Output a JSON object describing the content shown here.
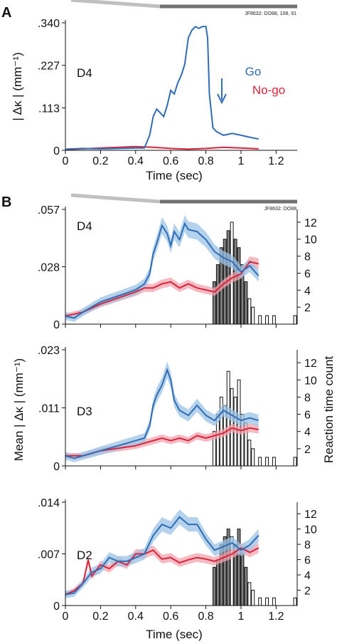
{
  "panels": {
    "A": {
      "letter": "A",
      "note": "JF8632: DO88, 108, 91"
    },
    "B": {
      "letter": "B",
      "note": "JF8632: DO88"
    }
  },
  "legend": {
    "go": "Go",
    "nogo": "No-go"
  },
  "colors": {
    "go": "#2f6db5",
    "nogo": "#d9243c",
    "go_band": "#9cc3e6",
    "nogo_band": "#f2a3ae",
    "hist_gray": "#808080",
    "stim_light": "#c0c0c0",
    "stim_dark": "#707070"
  },
  "axes": {
    "x_label": "Time (sec)",
    "x_ticks": [
      "0",
      "0.2",
      "0.4",
      "0.6",
      "0.8",
      "1",
      "1.2"
    ],
    "a_ylabel": "| Δκ |  (mm⁻¹)",
    "b_ylabel": "Mean | Δκ |  (mm⁻¹)",
    "b_right_label": "Reaction time count",
    "right_ticks": [
      "2",
      "4",
      "6",
      "8",
      "10",
      "12"
    ]
  },
  "chart_data": [
    {
      "panel": "A",
      "type": "line",
      "label": "D4",
      "x_range": [
        0,
        1.32
      ],
      "y_range": [
        0,
        0.34
      ],
      "y_ticks": [
        ".340",
        ".227",
        ".113",
        "0"
      ],
      "go": {
        "x": [
          0,
          0.1,
          0.2,
          0.3,
          0.4,
          0.45,
          0.48,
          0.5,
          0.52,
          0.54,
          0.56,
          0.58,
          0.6,
          0.62,
          0.64,
          0.66,
          0.68,
          0.7,
          0.72,
          0.74,
          0.76,
          0.78,
          0.8,
          0.81,
          0.82,
          0.84,
          0.86,
          0.9,
          0.95,
          1.0,
          1.05,
          1.1
        ],
        "y": [
          0.003,
          0.005,
          0.004,
          0.005,
          0.006,
          0.006,
          0.04,
          0.09,
          0.11,
          0.1,
          0.09,
          0.12,
          0.16,
          0.15,
          0.18,
          0.2,
          0.23,
          0.3,
          0.32,
          0.33,
          0.325,
          0.33,
          0.33,
          0.3,
          0.15,
          0.06,
          0.05,
          0.04,
          0.045,
          0.04,
          0.035,
          0.03
        ]
      },
      "nogo": {
        "x": [
          0,
          0.2,
          0.4,
          0.5,
          0.6,
          0.7,
          0.8,
          0.9,
          1.0,
          1.1
        ],
        "y": [
          0.002,
          0.006,
          0.01,
          0.008,
          0.005,
          0.003,
          0.005,
          0.008,
          0.006,
          0.004
        ]
      }
    },
    {
      "panel": "B",
      "type": "line",
      "label": "D4",
      "x_range": [
        0,
        1.32
      ],
      "y_range": [
        0,
        0.057
      ],
      "y_ticks": [
        ".057",
        ".028",
        "0"
      ],
      "right_range": [
        0,
        13.5
      ],
      "go": {
        "x": [
          0,
          0.05,
          0.1,
          0.2,
          0.3,
          0.4,
          0.45,
          0.48,
          0.5,
          0.52,
          0.55,
          0.58,
          0.6,
          0.62,
          0.65,
          0.68,
          0.7,
          0.75,
          0.8,
          0.85,
          0.9,
          0.95,
          1.0,
          1.05,
          1.1
        ],
        "y": [
          0.004,
          0.003,
          0.006,
          0.011,
          0.014,
          0.017,
          0.02,
          0.025,
          0.035,
          0.04,
          0.049,
          0.045,
          0.039,
          0.046,
          0.042,
          0.05,
          0.047,
          0.046,
          0.042,
          0.036,
          0.033,
          0.031,
          0.026,
          0.029,
          0.024
        ]
      },
      "nogo": {
        "x": [
          0,
          0.1,
          0.2,
          0.3,
          0.4,
          0.45,
          0.5,
          0.55,
          0.6,
          0.65,
          0.7,
          0.75,
          0.8,
          0.85,
          0.9,
          0.95,
          1.0,
          1.05,
          1.1
        ],
        "y": [
          0.004,
          0.006,
          0.01,
          0.013,
          0.016,
          0.018,
          0.018,
          0.02,
          0.021,
          0.018,
          0.02,
          0.018,
          0.017,
          0.016,
          0.02,
          0.023,
          0.025,
          0.031,
          0.03
        ]
      },
      "hist": {
        "bins": [
          0.84,
          0.86,
          0.88,
          0.9,
          0.92,
          0.94,
          0.96,
          0.98,
          1.0,
          1.02,
          1.04,
          1.06,
          1.1,
          1.14,
          1.18,
          1.3
        ],
        "counts": [
          5,
          7,
          9,
          10,
          11,
          12,
          10,
          9,
          7,
          5,
          3,
          2,
          1,
          1,
          1,
          1
        ],
        "fill": [
          "g",
          "g",
          "g",
          "g",
          "g",
          "w",
          "g",
          "g",
          "g",
          "g",
          "w",
          "w",
          "w",
          "w",
          "w",
          "w"
        ]
      }
    },
    {
      "panel": "B",
      "type": "line",
      "label": "D3",
      "x_range": [
        0,
        1.32
      ],
      "y_range": [
        0,
        0.023
      ],
      "y_ticks": [
        ".023",
        ".011",
        "0"
      ],
      "right_range": [
        0,
        13.5
      ],
      "go": {
        "x": [
          0,
          0.05,
          0.1,
          0.2,
          0.3,
          0.4,
          0.45,
          0.48,
          0.5,
          0.52,
          0.55,
          0.58,
          0.6,
          0.62,
          0.65,
          0.7,
          0.75,
          0.8,
          0.85,
          0.9,
          0.95,
          1.0,
          1.05,
          1.1
        ],
        "y": [
          0.002,
          0.0015,
          0.002,
          0.003,
          0.004,
          0.005,
          0.0055,
          0.008,
          0.012,
          0.014,
          0.016,
          0.019,
          0.017,
          0.013,
          0.011,
          0.01,
          0.012,
          0.01,
          0.009,
          0.011,
          0.01,
          0.009,
          0.0095,
          0.009
        ]
      },
      "nogo": {
        "x": [
          0,
          0.1,
          0.2,
          0.3,
          0.4,
          0.45,
          0.5,
          0.55,
          0.6,
          0.65,
          0.7,
          0.75,
          0.8,
          0.85,
          0.9,
          0.95,
          1.0,
          1.05,
          1.1
        ],
        "y": [
          0.002,
          0.002,
          0.003,
          0.0035,
          0.004,
          0.0045,
          0.005,
          0.0055,
          0.005,
          0.0055,
          0.005,
          0.006,
          0.0055,
          0.006,
          0.0065,
          0.0075,
          0.007,
          0.0075,
          0.0072
        ]
      },
      "hist": {
        "bins": [
          0.84,
          0.86,
          0.88,
          0.9,
          0.92,
          0.94,
          0.96,
          0.98,
          1.0,
          1.02,
          1.04,
          1.06,
          1.1,
          1.14,
          1.18,
          1.3
        ],
        "counts": [
          4,
          6,
          8,
          7,
          11,
          9,
          8,
          10,
          6,
          5,
          3,
          2,
          1,
          1,
          1,
          1
        ],
        "fill": [
          "w",
          "w",
          "w",
          "w",
          "w",
          "w",
          "w",
          "w",
          "w",
          "w",
          "w",
          "w",
          "w",
          "w",
          "w",
          "w"
        ]
      }
    },
    {
      "panel": "B",
      "type": "line",
      "label": "D2",
      "x_range": [
        0,
        1.32
      ],
      "y_range": [
        0,
        0.014
      ],
      "y_ticks": [
        ".014",
        ".007",
        "0"
      ],
      "right_range": [
        0,
        13.5
      ],
      "go": {
        "x": [
          0,
          0.05,
          0.1,
          0.15,
          0.2,
          0.25,
          0.3,
          0.35,
          0.4,
          0.45,
          0.48,
          0.5,
          0.55,
          0.6,
          0.65,
          0.7,
          0.75,
          0.8,
          0.85,
          0.9,
          0.95,
          1.0,
          1.05,
          1.1
        ],
        "y": [
          0.0015,
          0.0017,
          0.003,
          0.0045,
          0.005,
          0.0065,
          0.006,
          0.006,
          0.0065,
          0.007,
          0.0085,
          0.0095,
          0.011,
          0.0105,
          0.012,
          0.011,
          0.011,
          0.009,
          0.0075,
          0.008,
          0.0085,
          0.0075,
          0.0082,
          0.0095
        ]
      },
      "nogo": {
        "x": [
          0,
          0.05,
          0.1,
          0.13,
          0.15,
          0.2,
          0.25,
          0.3,
          0.35,
          0.4,
          0.45,
          0.5,
          0.55,
          0.6,
          0.65,
          0.7,
          0.75,
          0.8,
          0.85,
          0.9,
          0.95,
          1.0,
          1.05,
          1.1
        ],
        "y": [
          0.0015,
          0.002,
          0.003,
          0.0062,
          0.004,
          0.0055,
          0.005,
          0.006,
          0.0055,
          0.007,
          0.007,
          0.0075,
          0.0063,
          0.0065,
          0.0058,
          0.0062,
          0.0065,
          0.0063,
          0.006,
          0.0065,
          0.007,
          0.0078,
          0.0072,
          0.0078
        ]
      },
      "hist": {
        "bins": [
          0.84,
          0.86,
          0.88,
          0.9,
          0.92,
          0.94,
          0.96,
          0.98,
          1.0,
          1.02,
          1.04,
          1.06,
          1.1,
          1.14,
          1.18,
          1.3
        ],
        "counts": [
          5,
          6,
          8,
          9,
          10,
          9,
          8,
          10,
          7,
          5,
          3,
          2,
          1,
          1,
          1,
          1
        ],
        "fill": [
          "g",
          "g",
          "g",
          "g",
          "g",
          "w",
          "g",
          "g",
          "g",
          "g",
          "w",
          "w",
          "w",
          "w",
          "w",
          "w"
        ]
      }
    }
  ]
}
